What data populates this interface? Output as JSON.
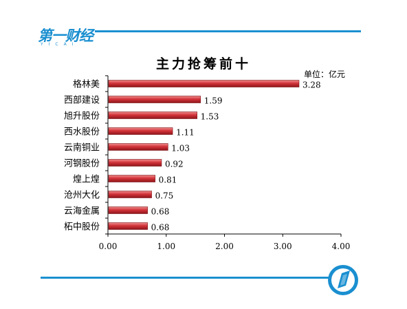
{
  "brand": {
    "name": "第一财经",
    "name_short": "第",
    "subtitle": "YICAI",
    "accent_color": "#1a8fd0"
  },
  "chart_data": {
    "type": "bar",
    "orientation": "horizontal",
    "title": "主力抢筹前十",
    "unit_label": "单位：亿元",
    "categories": [
      "格林美",
      "西部建设",
      "旭升股份",
      "西水股份",
      "云南铜业",
      "河钢股份",
      "煌上煌",
      "沧州大化",
      "云海金属",
      "柘中股份"
    ],
    "values": [
      3.28,
      1.59,
      1.53,
      1.11,
      1.03,
      0.92,
      0.81,
      0.75,
      0.68,
      0.68
    ],
    "value_labels": [
      "3.28",
      "1.59",
      "1.53",
      "1.11",
      "1.03",
      "0.92",
      "0.81",
      "0.75",
      "0.68",
      "0.68"
    ],
    "xlim": [
      0,
      4
    ],
    "x_ticks": [
      "0.00",
      "1.00",
      "2.00",
      "3.00",
      "4.00"
    ],
    "grid": false,
    "bar_color": "#c0272d"
  }
}
